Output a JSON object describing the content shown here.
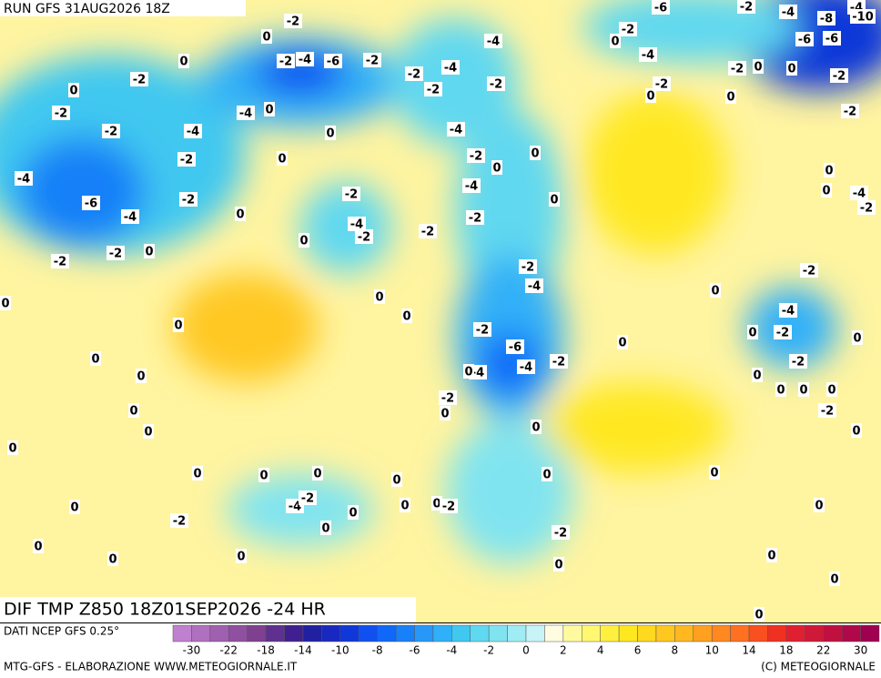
{
  "header": {
    "run": "RUN GFS 31AUG2026 18Z"
  },
  "map_title": "DIF TMP Z850 18Z01SEP2026 -24 HR",
  "map_labels": [
    -2,
    0,
    0,
    -2,
    0,
    -2,
    -2,
    -4,
    -2,
    -4,
    -6,
    -4,
    -2,
    0,
    -2,
    -2,
    0,
    0,
    0,
    0,
    0,
    0,
    0,
    0,
    0,
    0,
    0,
    0,
    -2,
    0,
    0,
    -4,
    -2,
    0,
    0,
    0,
    0,
    0,
    0,
    -2,
    -2,
    0,
    0,
    0,
    0,
    -2,
    -4,
    0,
    -4,
    -6,
    -2,
    -2,
    -4,
    -2,
    0,
    0,
    0,
    0,
    -4,
    -2,
    -2,
    -2,
    -2,
    -4,
    0,
    -2,
    -4,
    0,
    0,
    0,
    0,
    -4,
    0,
    -4,
    -2,
    -6,
    -2,
    -2,
    -2,
    -4,
    -4,
    -2,
    -2,
    0,
    -6,
    -4,
    -2,
    0,
    -2,
    0,
    0,
    0,
    -4,
    -8,
    -6,
    -6,
    -2,
    -2,
    0,
    0,
    -4,
    -2,
    -2,
    -2,
    0,
    -4,
    0,
    -2,
    0,
    -2,
    0,
    0,
    0,
    -2,
    0,
    0,
    0,
    0,
    0,
    0,
    0,
    -4,
    -10
  ],
  "legend": {
    "source": "DATI NCEP GFS 0.25°",
    "colors": [
      "#c080d0",
      "#b070c0",
      "#a060b0",
      "#9050a0",
      "#804090",
      "#603090",
      "#402090",
      "#2020a0",
      "#1828c0",
      "#1038d8",
      "#1050f0",
      "#1068f8",
      "#1880f8",
      "#2898f8",
      "#30b0f8",
      "#40c8f0",
      "#60d8f0",
      "#80e4f0",
      "#a0ecf4",
      "#c8f4f8",
      "#fffce0",
      "#fffaa0",
      "#fff870",
      "#fff040",
      "#ffe820",
      "#ffd820",
      "#ffc820",
      "#ffb820",
      "#ffa020",
      "#ff8820",
      "#ff7020",
      "#f85020",
      "#f03020",
      "#e02030",
      "#d01838",
      "#c01040",
      "#b00848",
      "#a00050"
    ],
    "ticks": [
      -30,
      -22,
      -18,
      -14,
      -10,
      -8,
      -6,
      -4,
      -2,
      0,
      2,
      4,
      6,
      8,
      10,
      14,
      18,
      22,
      30
    ]
  },
  "footer": {
    "left": "MTG-GFS - ELABORAZIONE WWW.METEOGIORNALE.IT",
    "right": "(C) METEOGIORNALE"
  }
}
